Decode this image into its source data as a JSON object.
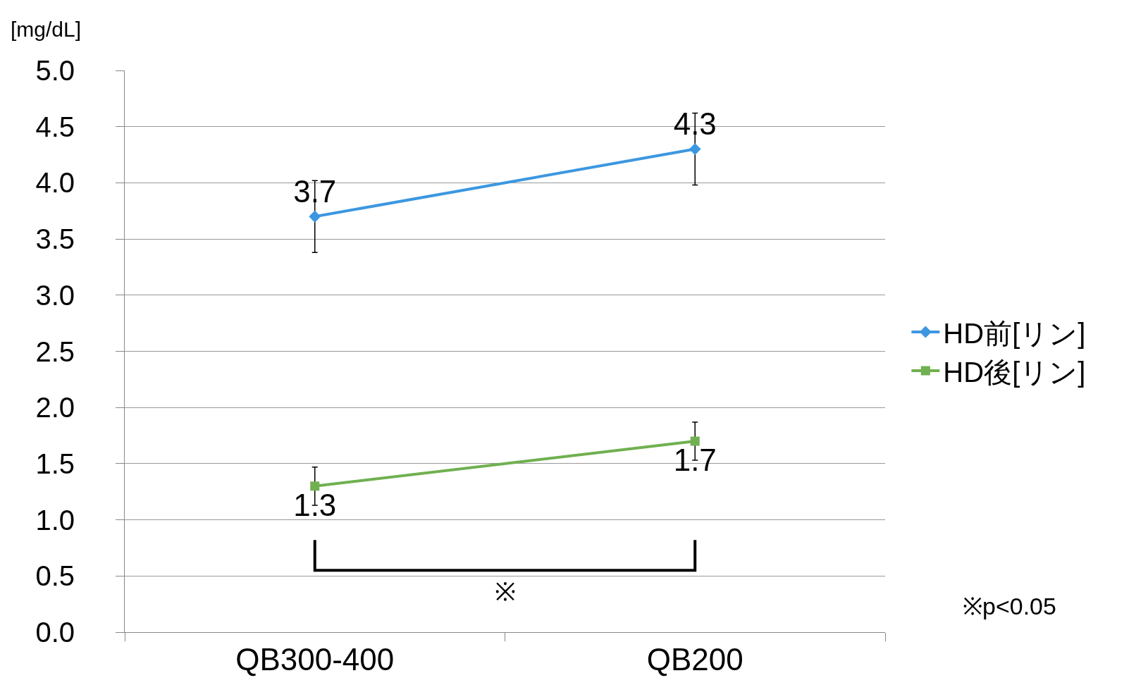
{
  "chart_data": {
    "type": "line",
    "ylabel": "[mg/dL]",
    "categories": [
      "QB300-400",
      "QB200"
    ],
    "series": [
      {
        "name": "HD前[リン]",
        "color": "#3c97e0",
        "marker": "diamond",
        "values": [
          3.7,
          4.3
        ],
        "errors": [
          0.32,
          0.32
        ]
      },
      {
        "name": "HD後[リン]",
        "color": "#70b050",
        "marker": "square",
        "values": [
          1.3,
          1.7
        ],
        "errors": [
          0.17,
          0.17
        ]
      }
    ],
    "ylim": [
      0,
      5
    ],
    "yticks": [
      {
        "value": 0,
        "label": "0.0"
      },
      {
        "value": 0.5,
        "label": "0.5"
      },
      {
        "value": 1,
        "label": "1.0"
      },
      {
        "value": 1.5,
        "label": "1.5"
      },
      {
        "value": 2,
        "label": "2.0"
      },
      {
        "value": 2.5,
        "label": "2.5"
      },
      {
        "value": 3,
        "label": "3.0"
      },
      {
        "value": 3.5,
        "label": "3.5"
      },
      {
        "value": 4,
        "label": "4.0"
      },
      {
        "value": 4.5,
        "label": "4.5"
      },
      {
        "value": 5,
        "label": "5.0"
      }
    ],
    "grid": "y",
    "legend": "right",
    "data_labels": true,
    "line_style": "solid",
    "annotations": [
      "※",
      "※p<0.05"
    ]
  }
}
